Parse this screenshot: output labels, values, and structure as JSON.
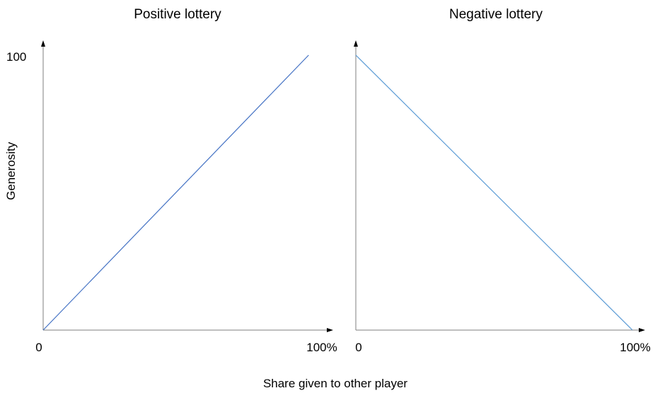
{
  "chart_data": [
    {
      "type": "line",
      "title": "Positive lottery",
      "xlabel": "",
      "ylabel": "Generosity",
      "x_tick_labels": [
        "0",
        "100%"
      ],
      "y_tick_labels": [
        "100"
      ],
      "xlim": [
        0,
        100
      ],
      "ylim": [
        0,
        100
      ],
      "grid": false,
      "series": [
        {
          "color": "#4472c4",
          "x": [
            0,
            95
          ],
          "y": [
            0,
            100
          ]
        }
      ]
    },
    {
      "type": "line",
      "title": "Negative lottery",
      "xlabel": "",
      "ylabel": "",
      "x_tick_labels": [
        "0",
        "100%"
      ],
      "y_tick_labels": [],
      "xlim": [
        0,
        100
      ],
      "ylim": [
        0,
        100
      ],
      "grid": false,
      "series": [
        {
          "color": "#5b9bd5",
          "x": [
            0,
            100
          ],
          "y": [
            100,
            0
          ]
        }
      ]
    }
  ],
  "shared_xlabel": "Share given to other player"
}
